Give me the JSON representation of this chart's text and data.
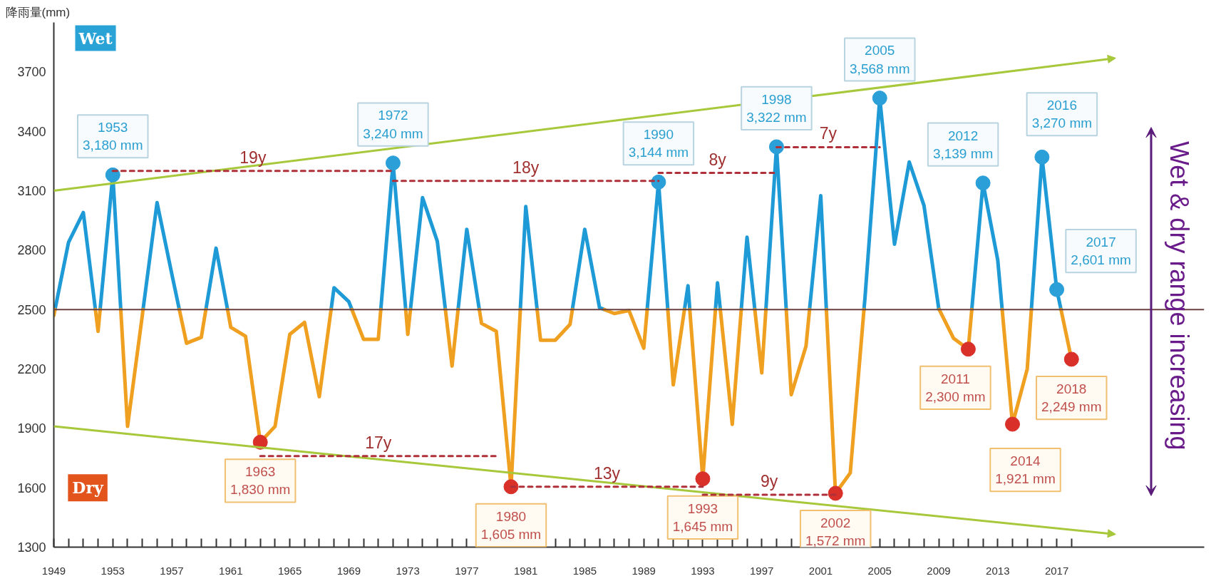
{
  "chart_data": {
    "type": "line",
    "ylabel": "降雨量(mm)",
    "series": [
      {
        "color": "#1e9ad6",
        "x": [
          1949.08,
          1950,
          1951,
          1951.82,
          1952,
          1952.14,
          1953,
          1953.54,
          1954,
          1955.05,
          1956,
          1957,
          1957.51,
          1958,
          1959.31,
          1960,
          1960.78,
          1961,
          1967.8,
          1968,
          1969,
          1969.21,
          1970,
          1971.17,
          1972,
          1972.86,
          1973,
          1973.18,
          1974,
          1975,
          1975.55,
          1976,
          1976.41,
          1977,
          1977.85,
          1978,
          1980.63,
          1981,
          1981.77,
          1982,
          1984.16,
          1985,
          1986,
          1986.33,
          1987,
          1989.23,
          1990,
          1990.63,
          1991,
          1991.76,
          1992,
          1992.12,
          1993,
          1993.86,
          1994,
          1994.19,
          1995,
          1995.61,
          1996,
          1996.53,
          1997,
          1997.28,
          1998,
          1998.66,
          1999,
          2000.24,
          2001,
          2001.38,
          2002,
          2003.93,
          2004,
          2005,
          2006,
          2007,
          2008,
          2009,
          2009.03,
          2010,
          2011.24,
          2012,
          2013,
          2013.3,
          2014,
          2015.28,
          2016,
          2017,
          2017.29
        ],
        "values": [
          2500,
          2840,
          2990,
          2500,
          null,
          2500,
          3180,
          2500,
          null,
          2500,
          3040,
          2680,
          2500,
          null,
          2500,
          2810,
          2500,
          null,
          2500,
          2610,
          2540,
          2500,
          null,
          2500,
          3240,
          2500,
          null,
          2500,
          3065,
          2845,
          2500,
          null,
          2500,
          2905,
          2500,
          null,
          2500,
          3020,
          2500,
          null,
          2500,
          2905,
          2510,
          2500,
          null,
          2500,
          3144,
          2500,
          null,
          2500,
          2620,
          2500,
          null,
          2500,
          2635,
          2500,
          null,
          2500,
          2865,
          2500,
          null,
          2500,
          3322,
          2500,
          null,
          2500,
          3075,
          2500,
          null,
          2500,
          2560,
          3568,
          2830,
          3245,
          3025,
          2505,
          2500,
          null,
          2500,
          3139,
          2750,
          2500,
          null,
          2500,
          3270,
          2601,
          2500
        ]
      },
      {
        "color": "#f0a020",
        "x": [
          1949,
          1949.08,
          1950,
          1951.82,
          1952,
          1952.14,
          1953,
          1953.54,
          1954,
          1955,
          1955.05,
          1956,
          1957.51,
          1958,
          1959,
          1959.31,
          1960,
          1960.78,
          1961,
          1962,
          1963,
          1964,
          1965,
          1966,
          1967,
          1967.8,
          1968,
          1969.21,
          1970,
          1971,
          1971.17,
          1972,
          1972.86,
          1973,
          1973.18,
          1974,
          1975.55,
          1976,
          1976.41,
          1977,
          1977.85,
          1978,
          1979,
          1980,
          1980.63,
          1981,
          1981.77,
          1982,
          1983,
          1984,
          1984.16,
          1985,
          1986.33,
          1987,
          1988,
          1989,
          1989.23,
          1990,
          1990.63,
          1991,
          1991.76,
          1992,
          1992.12,
          1993,
          1993.86,
          1994,
          1994.19,
          1995,
          1995.61,
          1996,
          1996.53,
          1997,
          1997.28,
          1998,
          1998.66,
          1999,
          2000,
          2000.24,
          2001,
          2001.38,
          2002,
          2003,
          2003.93,
          2004,
          2009.03,
          2010,
          2011,
          2011.24,
          2012,
          2013.3,
          2014,
          2015,
          2015.28,
          2016,
          2017.29,
          2018
        ],
        "values": [
          2470,
          2500,
          null,
          2500,
          2390,
          2500,
          null,
          2500,
          1910,
          2470,
          2500,
          null,
          2500,
          2330,
          2360,
          2500,
          null,
          2500,
          2410,
          2365,
          1830,
          1910,
          2375,
          2435,
          2060,
          2500,
          null,
          2500,
          2350,
          2350,
          2500,
          null,
          2500,
          2375,
          2500,
          null,
          2500,
          2215,
          2500,
          null,
          2500,
          2430,
          2390,
          1605,
          2500,
          null,
          2500,
          2345,
          2345,
          2425,
          2500,
          null,
          2500,
          2480,
          2495,
          2305,
          2500,
          null,
          2500,
          2120,
          2500,
          null,
          2500,
          1645,
          2500,
          null,
          2500,
          1920,
          2500,
          null,
          2500,
          2180,
          2500,
          null,
          2500,
          2070,
          2315,
          2500,
          null,
          2500,
          1572,
          1675,
          2500,
          null,
          2500,
          2355,
          2300,
          2500,
          null,
          2500,
          1921,
          2200,
          2500,
          null,
          2500,
          2249
        ]
      },
      {
        "color": "#a8c83c",
        "x": [
          1949,
          2021
        ],
        "values": [
          3100,
          3770
        ]
      },
      {
        "color": "#a8c83c",
        "x": [
          1949,
          2021
        ],
        "values": [
          1910,
          1365
        ]
      },
      {
        "color": "#b0303a",
        "line_style": "dashed",
        "x": [
          1953,
          1972
        ],
        "values": [
          3200,
          3200
        ]
      },
      {
        "color": "#b0303a",
        "line_style": "dashed",
        "x": [
          1972,
          1990
        ],
        "values": [
          3150,
          3150
        ]
      },
      {
        "color": "#b0303a",
        "line_style": "dashed",
        "x": [
          1990,
          1998
        ],
        "values": [
          3190,
          3190
        ]
      },
      {
        "color": "#b0303a",
        "line_style": "dashed",
        "x": [
          1998,
          2005
        ],
        "values": [
          3320,
          3320
        ]
      },
      {
        "color": "#b0303a",
        "line_style": "dashed",
        "x": [
          1963,
          1979
        ],
        "values": [
          1760,
          1760
        ]
      },
      {
        "color": "#b0303a",
        "line_style": "dashed",
        "x": [
          1980,
          1993
        ],
        "values": [
          1605,
          1605
        ]
      },
      {
        "color": "#b0303a",
        "line_style": "dashed",
        "x": [
          1993,
          2002
        ],
        "values": [
          1565,
          1565
        ]
      }
    ],
    "xlim": [
      1949,
      2027
    ],
    "ylim": [
      1300,
      3950
    ],
    "xticks": [
      1949,
      {
        "value": 1950,
        "label": null
      },
      {
        "value": 1951,
        "label": null
      },
      {
        "value": 1952,
        "label": null
      },
      1953,
      {
        "value": 1954,
        "label": null
      },
      {
        "value": 1955,
        "label": null
      },
      {
        "value": 1956,
        "label": null
      },
      1957,
      {
        "value": 1958,
        "label": null
      },
      {
        "value": 1959,
        "label": null
      },
      {
        "value": 1960,
        "label": null
      },
      1961,
      {
        "value": 1962,
        "label": null
      },
      {
        "value": 1963,
        "label": null
      },
      {
        "value": 1964,
        "label": null
      },
      1965,
      {
        "value": 1966,
        "label": null
      },
      {
        "value": 1967,
        "label": null
      },
      {
        "value": 1968,
        "label": null
      },
      1969,
      {
        "value": 1970,
        "label": null
      },
      {
        "value": 1971,
        "label": null
      },
      {
        "value": 1972,
        "label": null
      },
      1973,
      {
        "value": 1974,
        "label": null
      },
      {
        "value": 1975,
        "label": null
      },
      {
        "value": 1976,
        "label": null
      },
      1977,
      {
        "value": 1978,
        "label": null
      },
      {
        "value": 1979,
        "label": null
      },
      {
        "value": 1980,
        "label": null
      },
      1981,
      {
        "value": 1982,
        "label": null
      },
      {
        "value": 1983,
        "label": null
      },
      {
        "value": 1984,
        "label": null
      },
      1985,
      {
        "value": 1986,
        "label": null
      },
      {
        "value": 1987,
        "label": null
      },
      {
        "value": 1988,
        "label": null
      },
      1989,
      {
        "value": 1990,
        "label": null
      },
      {
        "value": 1991,
        "label": null
      },
      {
        "value": 1992,
        "label": null
      },
      1993,
      {
        "value": 1994,
        "label": null
      },
      {
        "value": 1995,
        "label": null
      },
      {
        "value": 1996,
        "label": null
      },
      1997,
      {
        "value": 1998,
        "label": null
      },
      {
        "value": 1999,
        "label": null
      },
      {
        "value": 2000,
        "label": null
      },
      2001,
      {
        "value": 2002,
        "label": null
      },
      {
        "value": 2003,
        "label": null
      },
      {
        "value": 2004,
        "label": null
      },
      2005,
      {
        "value": 2006,
        "label": null
      },
      {
        "value": 2007,
        "label": null
      },
      {
        "value": 2008,
        "label": null
      },
      2009,
      {
        "value": 2010,
        "label": null
      },
      {
        "value": 2011,
        "label": null
      },
      {
        "value": 2012,
        "label": null
      },
      2013,
      {
        "value": 2014,
        "label": null
      },
      {
        "value": 2015,
        "label": null
      },
      {
        "value": 2016,
        "label": null
      },
      2017,
      {
        "value": 2018,
        "label": null
      }
    ],
    "yticks": [
      1300,
      1600,
      1900,
      2200,
      2500,
      2800,
      3100,
      3400,
      3700
    ],
    "ref_lines": [
      {
        "axis": "y",
        "value": 2500,
        "color": "#6b4040"
      }
    ],
    "annotations": [
      {
        "text": "1953\n3,180 mm",
        "x": 1953,
        "y": 3180
      },
      {
        "text": "1972\n3,240 mm",
        "x": 1972,
        "y": 3240
      },
      {
        "text": "1990\n3,144 mm",
        "x": 1990,
        "y": 3144
      },
      {
        "text": "1998\n3,322 mm",
        "x": 1998,
        "y": 3322
      },
      {
        "text": "2005\n3,568 mm",
        "x": 2005,
        "y": 3568
      },
      {
        "text": "2012\n3,139 mm",
        "x": 2012,
        "y": 3139
      },
      {
        "text": "2016\n3,270 mm",
        "x": 2016,
        "y": 3270
      },
      {
        "text": "2017\n2,601 mm",
        "x": 2017,
        "y": 2601
      },
      {
        "text": "1963\n1,830 mm",
        "x": 1963,
        "y": 1830
      },
      {
        "text": "1980\n1,605 mm",
        "x": 1980,
        "y": 1605
      },
      {
        "text": "1993\n1,645 mm",
        "x": 1993,
        "y": 1645
      },
      {
        "text": "2002\n1,572 mm",
        "x": 2002,
        "y": 1572
      },
      {
        "text": "2011\n2,300 mm",
        "x": 2011,
        "y": 2300
      },
      {
        "text": "2014\n1,921 mm",
        "x": 2014,
        "y": 1921
      },
      {
        "text": "2018\n2,249 mm",
        "x": 2018,
        "y": 2249
      },
      {
        "text": "19y",
        "x": 1962.5,
        "y": 3200
      },
      {
        "text": "18y",
        "x": 1981,
        "y": 3150
      },
      {
        "text": "8y",
        "x": 1994,
        "y": 3190
      },
      {
        "text": "7y",
        "x": 2001.5,
        "y": 3320
      },
      {
        "text": "17y",
        "x": 1971,
        "y": 1760
      },
      {
        "text": "13y",
        "x": 1986.5,
        "y": 1605
      },
      {
        "text": "9y",
        "x": 1997.5,
        "y": 1565
      },
      "Wet",
      "Dry",
      "Wet & dry range increasing"
    ]
  }
}
